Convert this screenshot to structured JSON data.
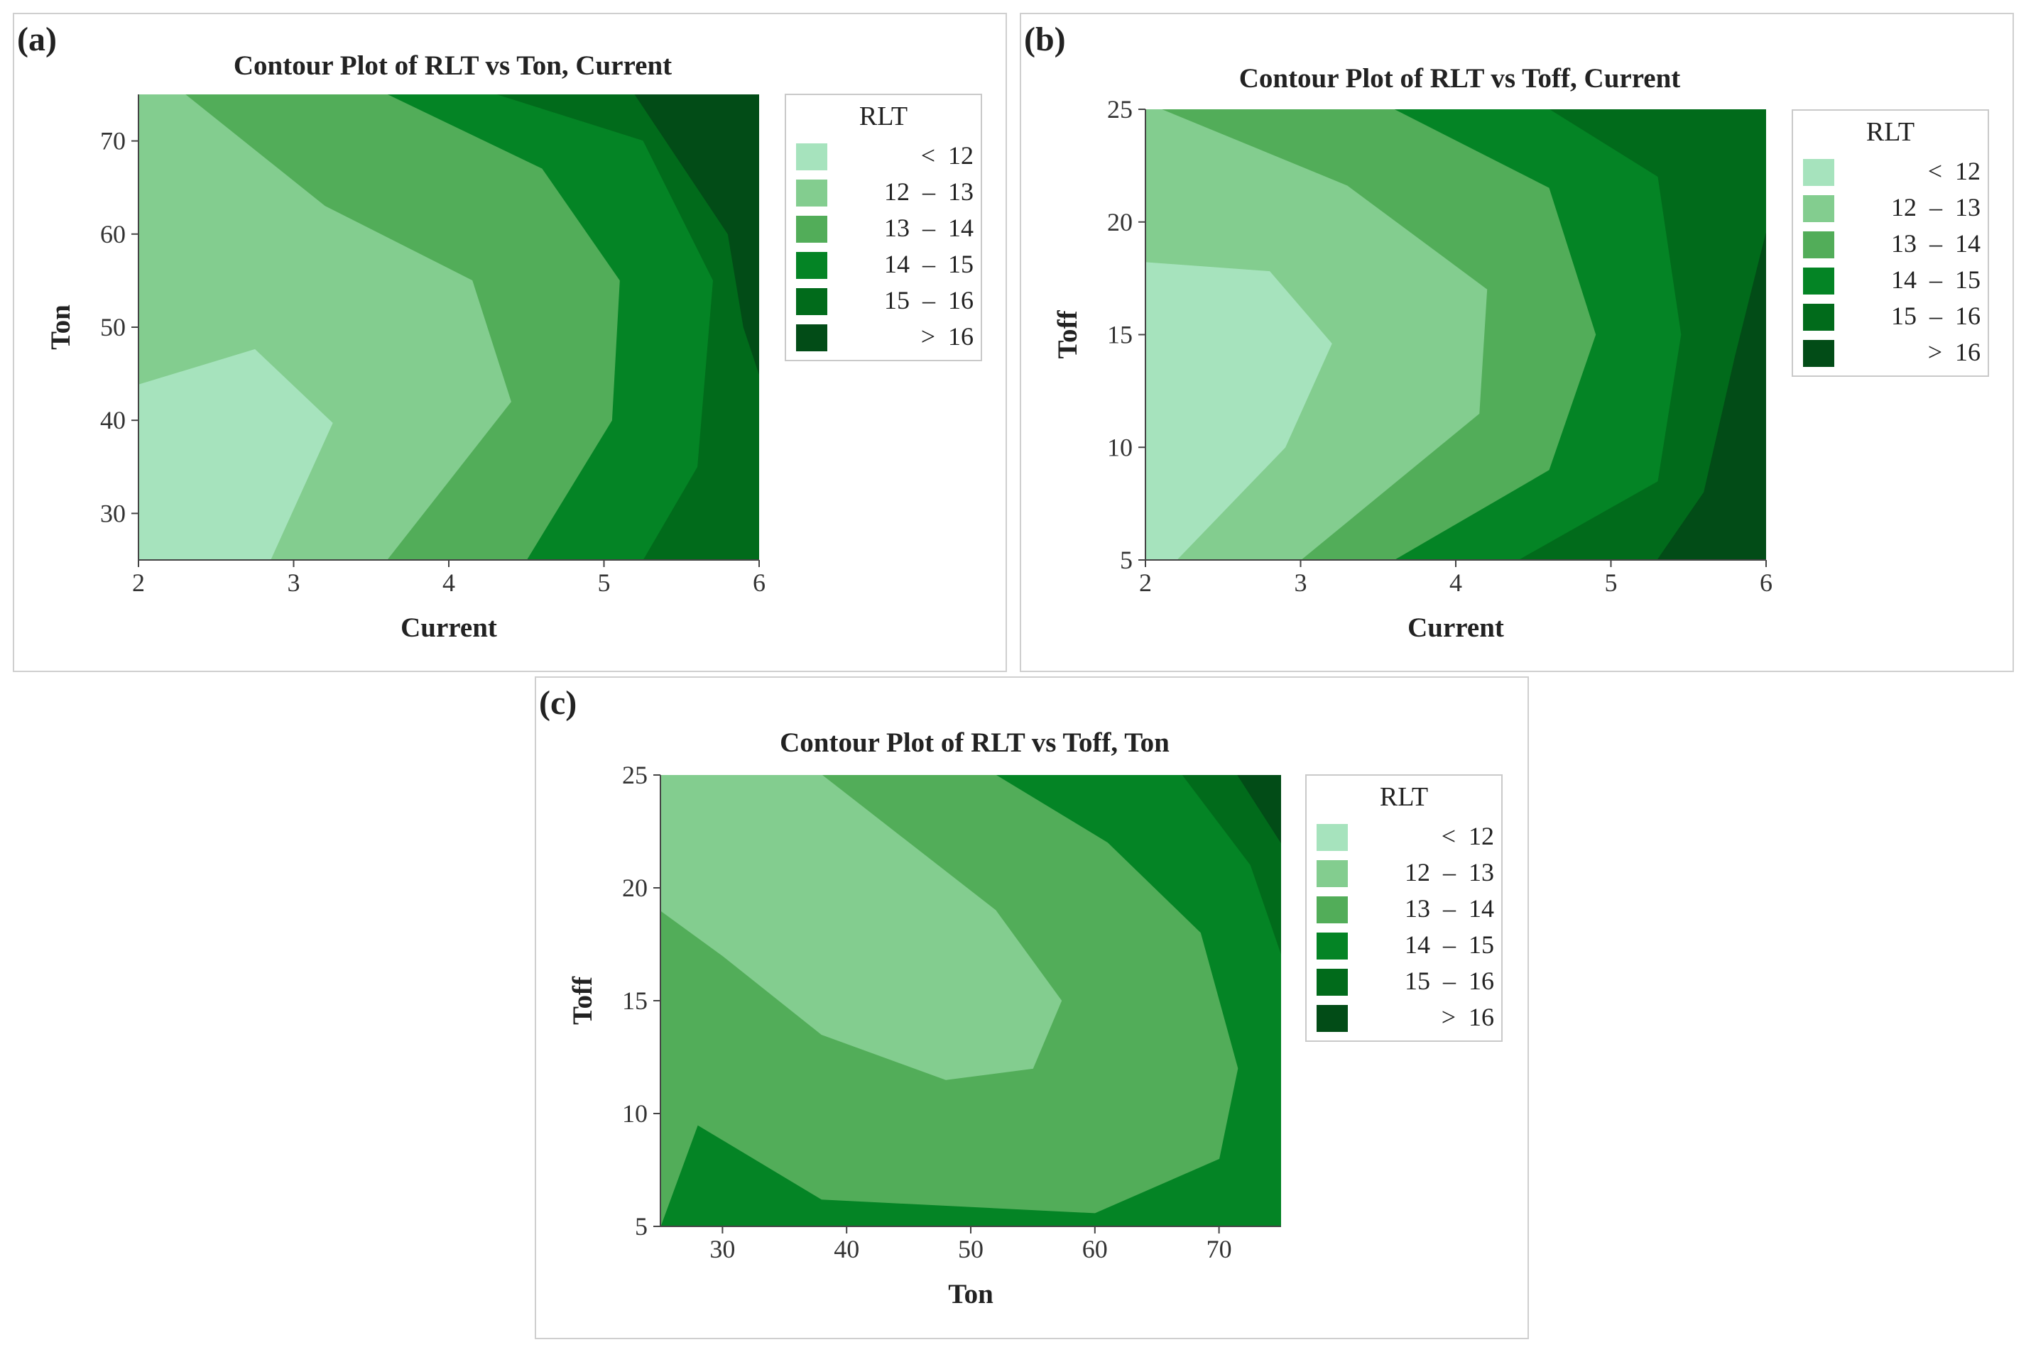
{
  "legend": {
    "title": "RLT",
    "entries": [
      "<  12",
      "12  –  13",
      "13  –  14",
      "14  –  15",
      "15  –  16",
      ">  16"
    ],
    "colors": [
      "#a6e3bd",
      "#83cd8f",
      "#52ad59",
      "#048425",
      "#016b1b",
      "#024c17"
    ]
  },
  "panels": {
    "a": {
      "label": "(a)",
      "title": "Contour Plot of RLT vs Ton, Current",
      "xlabel": "Current",
      "ylabel": "Ton",
      "xticks": [
        "2",
        "3",
        "4",
        "5",
        "6"
      ],
      "yticks": [
        "30",
        "40",
        "50",
        "60",
        "70"
      ]
    },
    "b": {
      "label": "(b)",
      "title": "Contour Plot of RLT vs Toff, Current",
      "xlabel": "Current",
      "ylabel": "Toff",
      "xticks": [
        "2",
        "3",
        "4",
        "5",
        "6"
      ],
      "yticks": [
        "5",
        "10",
        "15",
        "20",
        "25"
      ]
    },
    "c": {
      "label": "(c)",
      "title": "Contour Plot of RLT vs Toff, Ton",
      "xlabel": "Ton",
      "ylabel": "Toff",
      "xticks": [
        "30",
        "40",
        "50",
        "60",
        "70"
      ],
      "yticks": [
        "5",
        "10",
        "15",
        "20",
        "25"
      ]
    }
  },
  "chart_data": [
    {
      "type": "heatmap",
      "title": "Contour Plot of RLT vs Ton, Current",
      "xlabel": "Current",
      "ylabel": "Ton",
      "xlim": [
        2,
        6
      ],
      "ylim": [
        25,
        75
      ],
      "levels": [
        "< 12",
        "12 – 13",
        "13 – 14",
        "14 – 15",
        "15 – 16",
        "> 16"
      ],
      "contours": [
        {
          "level": "< 12",
          "points": [
            [
              2,
              25
            ],
            [
              2,
              43.8
            ],
            [
              2.75,
              47.6
            ],
            [
              3.25,
              39.7
            ],
            [
              2.85,
              25
            ]
          ]
        },
        {
          "level": "12 – 13",
          "points": [
            [
              2,
              25
            ],
            [
              2,
              75
            ],
            [
              2.3,
              75
            ],
            [
              3.2,
              63
            ],
            [
              4.15,
              55
            ],
            [
              4.4,
              42
            ],
            [
              3.6,
              25
            ]
          ]
        },
        {
          "level": "13 – 14",
          "points": [
            [
              2,
              25
            ],
            [
              2,
              75
            ],
            [
              3.6,
              75
            ],
            [
              4.6,
              67
            ],
            [
              5.1,
              55
            ],
            [
              5.05,
              40
            ],
            [
              4.5,
              25
            ]
          ]
        },
        {
          "level": "14 – 15",
          "points": [
            [
              2,
              25
            ],
            [
              2,
              75
            ],
            [
              4.3,
              75
            ],
            [
              5.25,
              70
            ],
            [
              5.7,
              55
            ],
            [
              5.6,
              35
            ],
            [
              5.25,
              25
            ]
          ]
        },
        {
          "level": "15 – 16",
          "points": [
            [
              2,
              25
            ],
            [
              2,
              75
            ],
            [
              5.2,
              75
            ],
            [
              5.8,
              60
            ],
            [
              5.9,
              50
            ],
            [
              6,
              45
            ],
            [
              6,
              25
            ]
          ]
        },
        {
          "level": "> 16",
          "points": [
            [
              5.2,
              75
            ],
            [
              6,
              75
            ],
            [
              6,
              45
            ],
            [
              5.9,
              50
            ],
            [
              5.8,
              60
            ]
          ]
        }
      ]
    },
    {
      "type": "heatmap",
      "title": "Contour Plot of RLT vs Toff, Current",
      "xlabel": "Current",
      "ylabel": "Toff",
      "xlim": [
        2,
        6
      ],
      "ylim": [
        5,
        25
      ],
      "levels": [
        "< 12",
        "12 – 13",
        "13 – 14",
        "14 – 15",
        "15 – 16",
        "> 16"
      ],
      "contours": [
        {
          "level": "< 12",
          "points": [
            [
              2,
              5
            ],
            [
              2,
              18.2
            ],
            [
              2.8,
              17.8
            ],
            [
              3.2,
              14.6
            ],
            [
              2.9,
              10
            ],
            [
              2.2,
              5
            ]
          ]
        },
        {
          "level": "12 – 13",
          "points": [
            [
              2,
              5
            ],
            [
              2,
              25
            ],
            [
              2.1,
              25
            ],
            [
              3.3,
              21.6
            ],
            [
              4.2,
              17
            ],
            [
              4.15,
              11.5
            ],
            [
              3,
              5
            ]
          ]
        },
        {
          "level": "13 – 14",
          "points": [
            [
              2,
              5
            ],
            [
              2,
              25
            ],
            [
              3.6,
              25
            ],
            [
              4.6,
              21.5
            ],
            [
              4.9,
              15
            ],
            [
              4.6,
              9
            ],
            [
              3.6,
              5
            ]
          ]
        },
        {
          "level": "14 – 15",
          "points": [
            [
              2,
              5
            ],
            [
              2,
              25
            ],
            [
              4.6,
              25
            ],
            [
              5.3,
              22
            ],
            [
              5.45,
              15
            ],
            [
              5.3,
              8.5
            ],
            [
              4.4,
              5
            ]
          ]
        },
        {
          "level": "15 – 16",
          "points": [
            [
              2,
              5
            ],
            [
              2,
              25
            ],
            [
              6,
              25
            ],
            [
              6,
              19.5
            ],
            [
              5.8,
              14
            ],
            [
              5.6,
              8
            ],
            [
              5.3,
              5
            ]
          ]
        },
        {
          "level": "> 16",
          "points": [
            [
              5.3,
              5
            ],
            [
              6,
              5
            ],
            [
              6,
              19.5
            ],
            [
              5.8,
              14
            ],
            [
              5.6,
              8
            ]
          ]
        }
      ]
    },
    {
      "type": "heatmap",
      "title": "Contour Plot of RLT vs Toff, Ton",
      "xlabel": "Ton",
      "ylabel": "Toff",
      "xlim": [
        25,
        75
      ],
      "ylim": [
        5,
        25
      ],
      "levels": [
        "< 12",
        "12 – 13",
        "13 – 14",
        "14 – 15",
        "15 – 16",
        "> 16"
      ],
      "contours": [
        {
          "level": "12 – 13",
          "points": [
            [
              25,
              19
            ],
            [
              25,
              25
            ],
            [
              38,
              25
            ],
            [
              52,
              19
            ],
            [
              57.3,
              15
            ],
            [
              55,
              12
            ],
            [
              48,
              11.5
            ],
            [
              38,
              13.5
            ],
            [
              30,
              17
            ]
          ]
        },
        {
          "level": "13 – 14",
          "points": [
            [
              25,
              5
            ],
            [
              25,
              25
            ],
            [
              52,
              25
            ],
            [
              61,
              22
            ],
            [
              68.5,
              18
            ],
            [
              71.5,
              12
            ],
            [
              70,
              8
            ],
            [
              60,
              5.6
            ],
            [
              38,
              6.2
            ],
            [
              28,
              9.5
            ]
          ]
        },
        {
          "level": "14 – 15",
          "points": [
            [
              25,
              5
            ],
            [
              25,
              25
            ],
            [
              67,
              25
            ],
            [
              72.5,
              21
            ],
            [
              75,
              17
            ],
            [
              75,
              5
            ]
          ]
        },
        {
          "level": "15 – 16",
          "points": [
            [
              66,
              25
            ],
            [
              75,
              25
            ],
            [
              75,
              17
            ],
            [
              72.5,
              21
            ]
          ]
        },
        {
          "level": "> 16",
          "points": [
            [
              71.5,
              25
            ],
            [
              75,
              25
            ],
            [
              75,
              22
            ]
          ]
        }
      ]
    }
  ]
}
